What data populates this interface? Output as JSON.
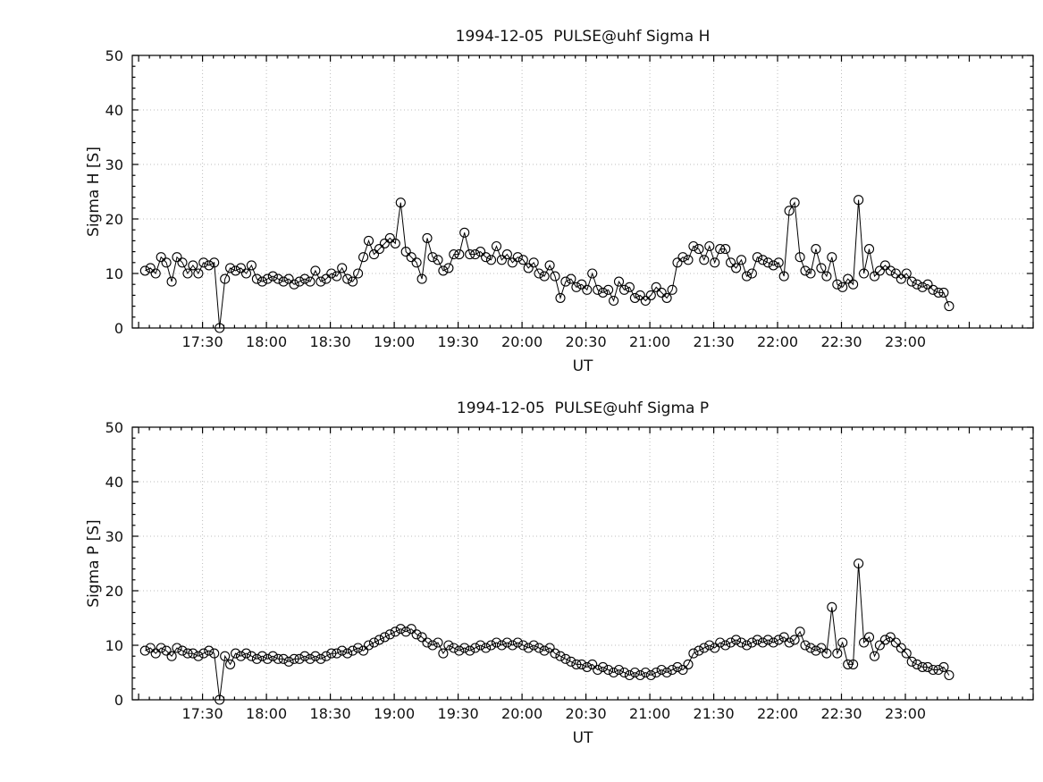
{
  "figure": {
    "background": "#ffffff",
    "line_color": "#000000",
    "grid_color": "#bdbdbd"
  },
  "chart_data": [
    {
      "type": "line",
      "title": "1994-12-05  PULSE@uhf Sigma H",
      "xlabel": "UT",
      "ylabel": "Sigma H [S]",
      "ylim": [
        0,
        50
      ],
      "y_ticks": [
        0,
        10,
        20,
        30,
        40,
        50
      ],
      "y_tick_labels": [
        "0",
        "10",
        "20",
        "30",
        "40",
        "50"
      ],
      "xlim_hours": [
        16.95,
        24.0
      ],
      "x_ticks_hours": [
        17.5,
        18.0,
        18.5,
        19.0,
        19.5,
        20.0,
        20.5,
        21.0,
        21.5,
        22.0,
        22.5,
        23.0
      ],
      "x_tick_labels": [
        "17:30",
        "18:00",
        "18:30",
        "19:00",
        "19:30",
        "20:00",
        "20:30",
        "21:00",
        "21:30",
        "22:00",
        "22:30",
        "23:00"
      ],
      "x_minor_step_minutes": 5,
      "y_minor_step": 2,
      "grid": true,
      "marker": "open-circle",
      "x_start_hours": 17.05,
      "x_step_minutes": 2.5,
      "values": [
        10.5,
        11,
        10,
        13,
        12,
        8.5,
        13,
        12,
        10,
        11.5,
        10,
        12,
        11.5,
        12,
        0,
        9,
        11,
        10.5,
        11,
        10,
        11.5,
        9,
        8.5,
        9,
        9.5,
        9,
        8.5,
        9,
        8,
        8.5,
        9,
        8.5,
        10.5,
        8.5,
        9,
        10,
        9.5,
        11,
        9,
        8.5,
        10,
        13,
        16,
        13.5,
        14.5,
        15.5,
        16.5,
        15.5,
        23,
        14,
        13,
        12,
        9,
        16.5,
        13,
        12.5,
        10.5,
        11,
        13.5,
        13.5,
        17.5,
        13.5,
        13.5,
        14,
        13,
        12.5,
        15,
        12.5,
        13.5,
        12,
        13,
        12.5,
        11,
        12,
        10,
        9.5,
        11.5,
        9.5,
        5.5,
        8.5,
        9,
        7.5,
        8,
        7,
        10,
        7,
        6.5,
        7,
        5,
        8.5,
        7,
        7.5,
        5.5,
        6,
        5,
        6,
        7.5,
        6.5,
        5.5,
        7,
        12,
        13,
        12.5,
        15,
        14.5,
        12.5,
        15,
        12,
        14.5,
        14.5,
        12,
        11,
        12.5,
        9.5,
        10,
        13,
        12.5,
        12,
        11.5,
        12,
        9.5,
        21.5,
        23,
        13,
        10.5,
        10,
        14.5,
        11,
        9.5,
        13,
        8,
        7.5,
        9,
        8,
        23.5,
        10,
        14.5,
        9.5,
        10.5,
        11.5,
        10.5,
        10,
        9,
        10,
        8.5,
        8,
        7.5,
        8,
        7,
        6.5,
        6.5,
        4
      ]
    },
    {
      "type": "line",
      "title": "1994-12-05  PULSE@uhf Sigma P",
      "xlabel": "UT",
      "ylabel": "Sigma P [S]",
      "ylim": [
        0,
        50
      ],
      "y_ticks": [
        0,
        10,
        20,
        30,
        40,
        50
      ],
      "y_tick_labels": [
        "0",
        "10",
        "20",
        "30",
        "40",
        "50"
      ],
      "xlim_hours": [
        16.95,
        24.0
      ],
      "x_ticks_hours": [
        17.5,
        18.0,
        18.5,
        19.0,
        19.5,
        20.0,
        20.5,
        21.0,
        21.5,
        22.0,
        22.5,
        23.0
      ],
      "x_tick_labels": [
        "17:30",
        "18:00",
        "18:30",
        "19:00",
        "19:30",
        "20:00",
        "20:30",
        "21:00",
        "21:30",
        "22:00",
        "22:30",
        "23:00"
      ],
      "x_minor_step_minutes": 5,
      "y_minor_step": 2,
      "grid": true,
      "marker": "open-circle",
      "x_start_hours": 17.05,
      "x_step_minutes": 2.5,
      "values": [
        9,
        9.5,
        8.5,
        9.5,
        9,
        8,
        9.5,
        9,
        8.5,
        8.5,
        8,
        8.5,
        9,
        8.5,
        0,
        8,
        6.5,
        8.5,
        8,
        8.5,
        8,
        7.5,
        8,
        7.5,
        8,
        7.5,
        7.5,
        7,
        7.5,
        7.5,
        8,
        7.5,
        8,
        7.5,
        8,
        8.5,
        8.5,
        9,
        8.5,
        9,
        9.5,
        9,
        10,
        10.5,
        11,
        11.5,
        12,
        12.5,
        13,
        12.5,
        13,
        12,
        11.5,
        10.5,
        10,
        10.5,
        8.5,
        10,
        9.5,
        9,
        9.5,
        9,
        9.5,
        10,
        9.5,
        10,
        10.5,
        10,
        10.5,
        10,
        10.5,
        10,
        9.5,
        10,
        9.5,
        9,
        9.5,
        8.5,
        8,
        7.5,
        7,
        6.5,
        6.5,
        6,
        6.5,
        5.5,
        6,
        5.5,
        5,
        5.5,
        5,
        4.5,
        5,
        4.5,
        5,
        4.5,
        5,
        5.5,
        5,
        5.5,
        6,
        5.5,
        6.5,
        8.5,
        9,
        9.5,
        10,
        9.5,
        10.5,
        10,
        10.5,
        11,
        10.5,
        10,
        10.5,
        11,
        10.5,
        11,
        10.5,
        11,
        11.5,
        10.5,
        11,
        12.5,
        10,
        9.5,
        9,
        9.5,
        8.5,
        17,
        8.5,
        10.5,
        6.5,
        6.5,
        25,
        10.5,
        11.5,
        8,
        10,
        11,
        11.5,
        10.5,
        9.5,
        8.5,
        7,
        6.5,
        6,
        6,
        5.5,
        5.5,
        6,
        4.5
      ]
    }
  ]
}
